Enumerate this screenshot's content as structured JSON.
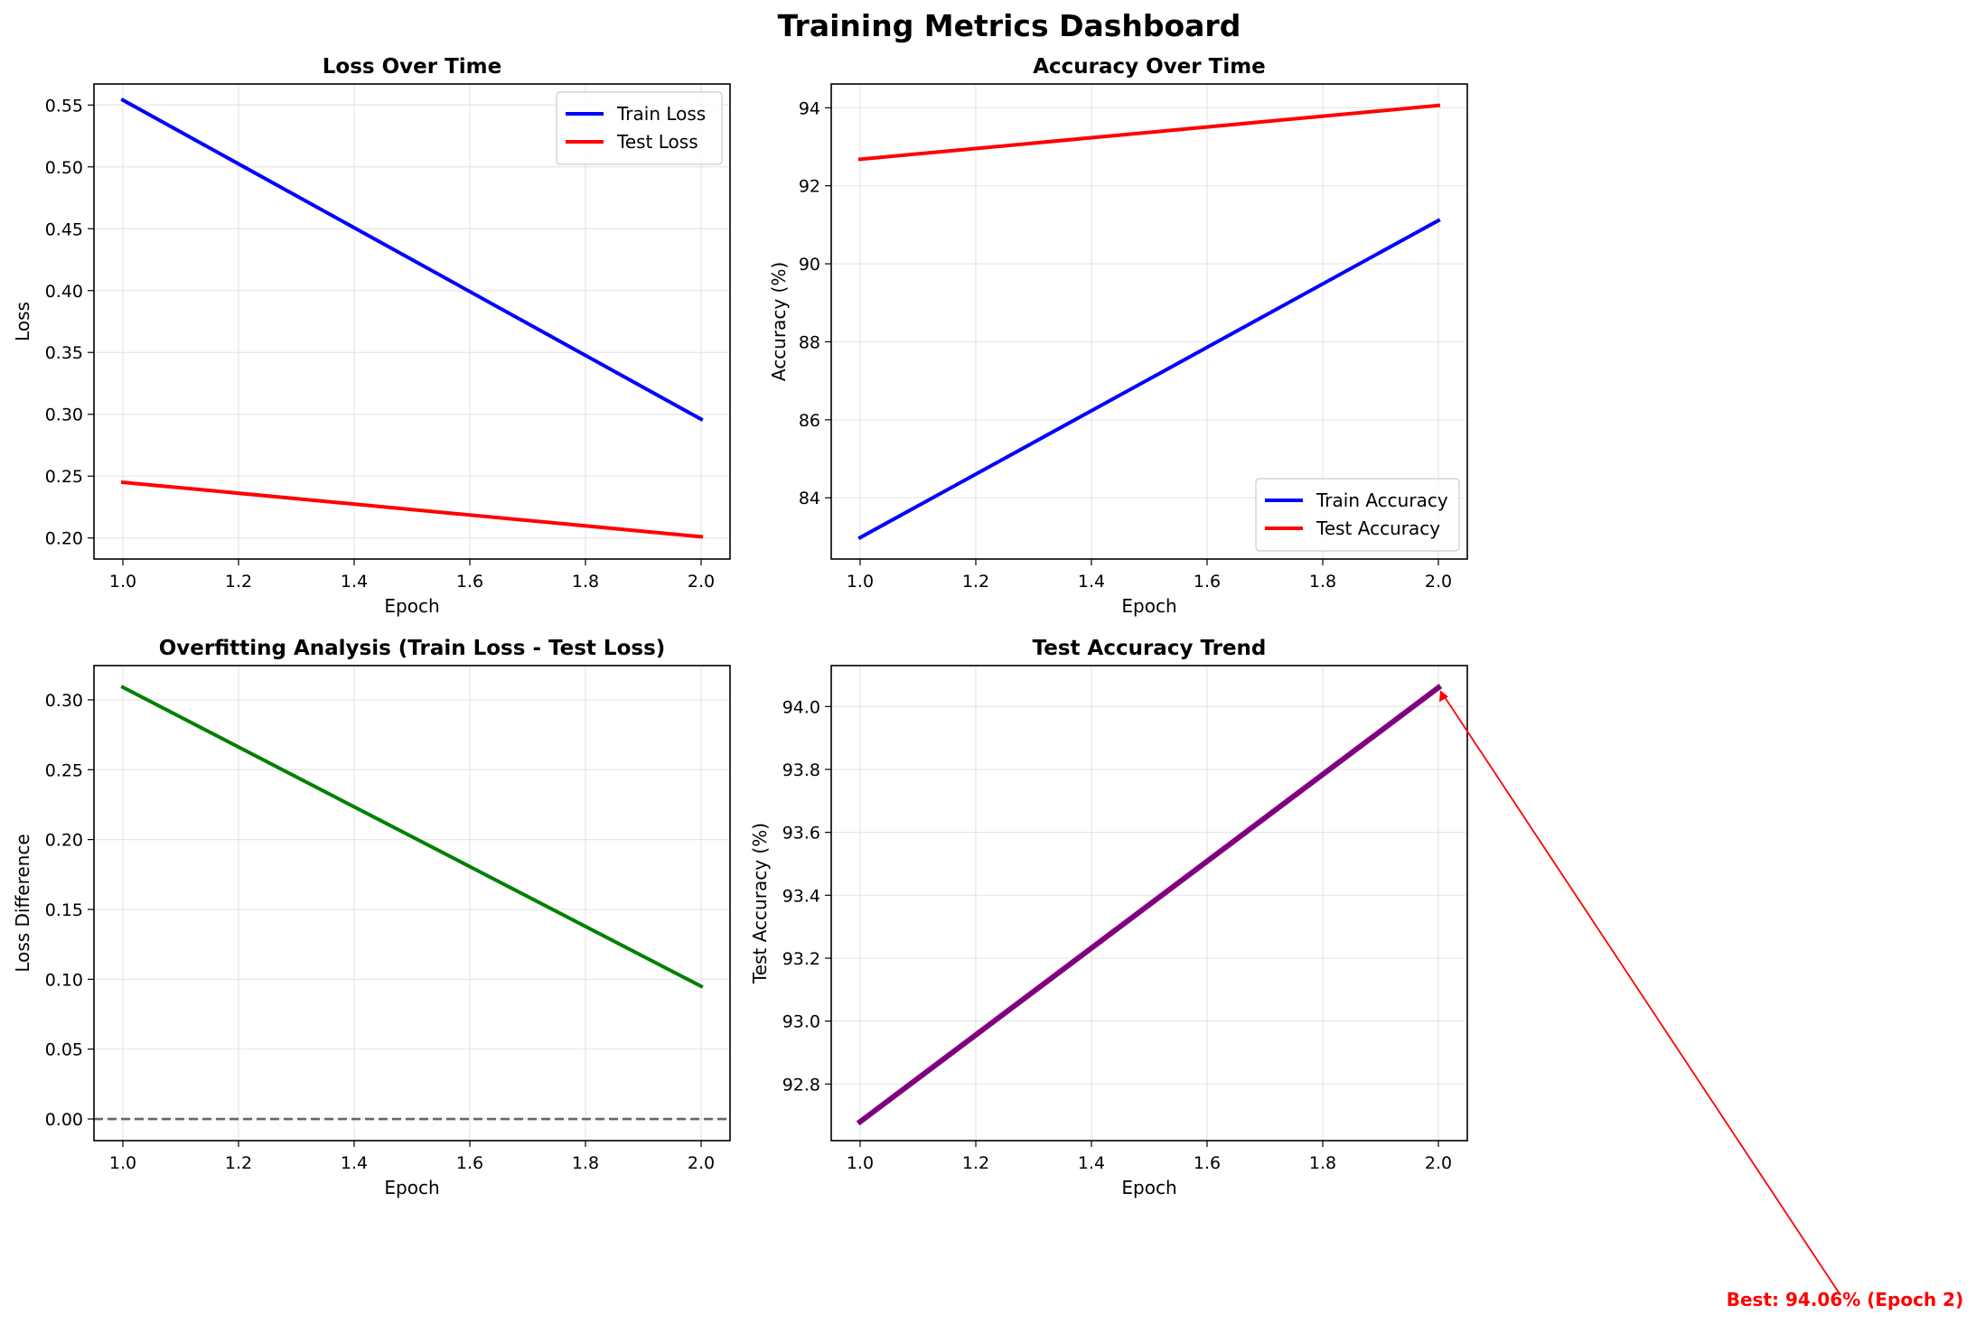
{
  "figure": {
    "suptitle": "Training Metrics Dashboard"
  },
  "chart_data": [
    {
      "type": "line",
      "title": "Loss Over Time",
      "xlabel": "Epoch",
      "ylabel": "Loss",
      "x": [
        1.0,
        2.0
      ],
      "xlim": [
        0.95,
        2.05
      ],
      "ylim": [
        0.183,
        0.567
      ],
      "xticks": [
        1.0,
        1.2,
        1.4,
        1.6,
        1.8,
        2.0
      ],
      "yticks": [
        0.2,
        0.25,
        0.3,
        0.35,
        0.4,
        0.45,
        0.5,
        0.55
      ],
      "grid": true,
      "legend": "upper-right",
      "series": [
        {
          "name": "Train Loss",
          "values": [
            0.554,
            0.296
          ],
          "color": "#0000ff"
        },
        {
          "name": "Test Loss",
          "values": [
            0.245,
            0.201
          ],
          "color": "#ff0000"
        }
      ]
    },
    {
      "type": "line",
      "title": "Accuracy Over Time",
      "xlabel": "Epoch",
      "ylabel": "Accuracy (%)",
      "x": [
        1.0,
        2.0
      ],
      "xlim": [
        0.95,
        2.05
      ],
      "ylim": [
        82.43,
        94.61
      ],
      "xticks": [
        1.0,
        1.2,
        1.4,
        1.6,
        1.8,
        2.0
      ],
      "yticks": [
        84,
        86,
        88,
        90,
        92,
        94
      ],
      "grid": true,
      "legend": "lower-right",
      "series": [
        {
          "name": "Train Accuracy",
          "values": [
            82.98,
            91.11
          ],
          "color": "#0000ff"
        },
        {
          "name": "Test Accuracy",
          "values": [
            92.68,
            94.06
          ],
          "color": "#ff0000"
        }
      ]
    },
    {
      "type": "line",
      "title": "Overfitting Analysis (Train Loss - Test Loss)",
      "xlabel": "Epoch",
      "ylabel": "Loss Difference",
      "x": [
        1.0,
        2.0
      ],
      "xlim": [
        0.95,
        2.05
      ],
      "ylim": [
        -0.0155,
        0.3245
      ],
      "xticks": [
        1.0,
        1.2,
        1.4,
        1.6,
        1.8,
        2.0
      ],
      "yticks": [
        0.0,
        0.05,
        0.1,
        0.15,
        0.2,
        0.25,
        0.3
      ],
      "grid": true,
      "reference_line": {
        "y": 0,
        "style": "dashed",
        "color": "#666666"
      },
      "series": [
        {
          "values": [
            0.309,
            0.095
          ],
          "color": "#008000"
        }
      ]
    },
    {
      "type": "line",
      "title": "Test Accuracy Trend",
      "xlabel": "Epoch",
      "ylabel": "Test Accuracy (%)",
      "x": [
        1.0,
        2.0
      ],
      "xlim": [
        0.95,
        2.05
      ],
      "ylim": [
        92.62,
        94.13
      ],
      "xticks": [
        1.0,
        1.2,
        1.4,
        1.6,
        1.8,
        2.0
      ],
      "yticks": [
        92.8,
        93.0,
        93.2,
        93.4,
        93.6,
        93.8,
        94.0
      ],
      "grid": true,
      "series": [
        {
          "values": [
            92.68,
            94.06
          ],
          "color": "#800080"
        }
      ],
      "annotation": {
        "text": "Best: 94.06% (Epoch 2)",
        "x": 2.0,
        "y": 94.06,
        "color": "#ff0000"
      }
    }
  ]
}
